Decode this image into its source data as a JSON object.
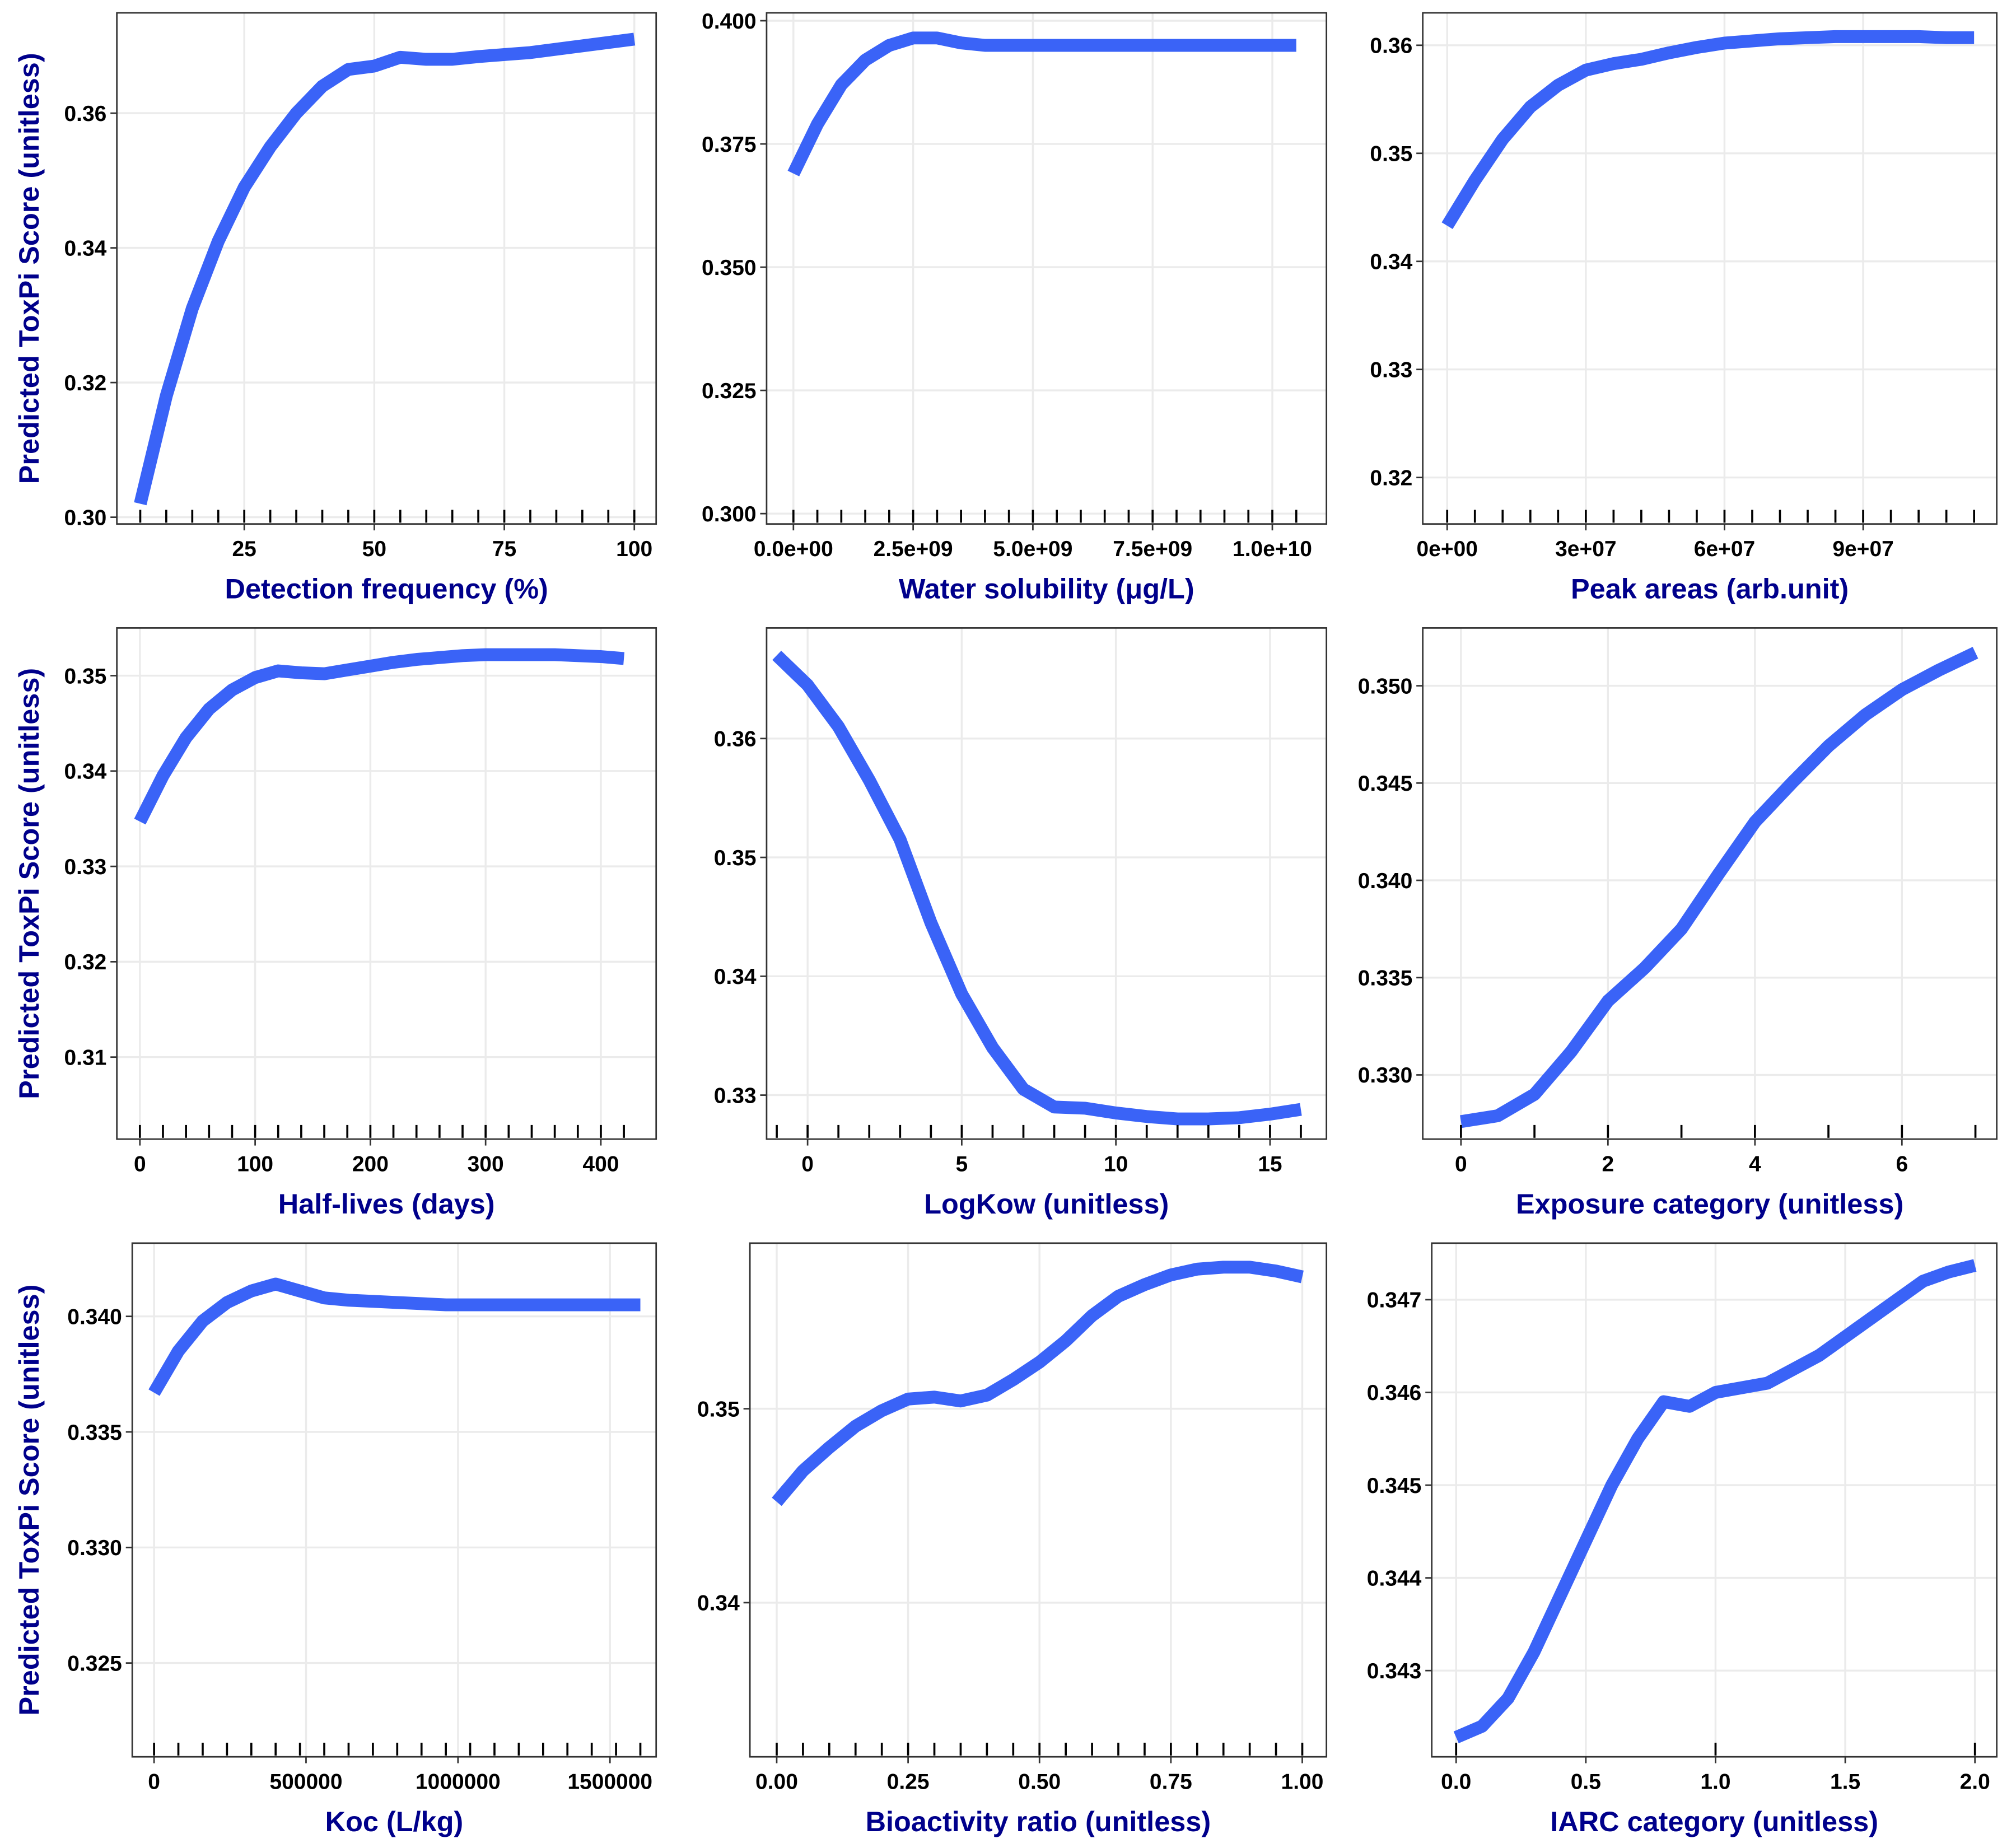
{
  "chart_data": [
    {
      "type": "line",
      "x_label": "Detection frequency (%)",
      "y_label": "Predicted ToxPi Score (unitless)",
      "color": "#3a63f7",
      "grid": true,
      "x": [
        5,
        10,
        15,
        20,
        25,
        30,
        35,
        40,
        45,
        50,
        55,
        60,
        65,
        70,
        75,
        80,
        85,
        90,
        95,
        100
      ],
      "values": [
        0.302,
        0.318,
        0.331,
        0.341,
        0.349,
        0.355,
        0.36,
        0.364,
        0.3665,
        0.367,
        0.3683,
        0.368,
        0.368,
        0.3684,
        0.3687,
        0.369,
        0.3695,
        0.37,
        0.3705,
        0.371
      ],
      "xlim": [
        0.5,
        104.2
      ],
      "ylim": [
        0.299,
        0.3749
      ],
      "xticks": [
        25,
        50,
        75,
        100
      ],
      "yticks": [
        {
          "value": 0.3,
          "label": "0.30"
        },
        0.32,
        0.34,
        0.36
      ]
    },
    {
      "type": "line",
      "x_label": "Water solubility (μg/L)",
      "color": "#3a63f7",
      "grid": true,
      "x": [
        0,
        500000000,
        1000000000,
        1500000000,
        2000000000,
        2500000000,
        3000000000,
        3500000000,
        4000000000,
        4500000000,
        5000000000,
        5500000000,
        6000000000,
        6500000000,
        7000000000,
        7500000000,
        8000000000,
        8500000000,
        9000000000,
        9500000000,
        10000000000,
        10500000000
      ],
      "values": [
        0.369,
        0.379,
        0.387,
        0.392,
        0.395,
        0.3965,
        0.3965,
        0.3955,
        0.395,
        0.395,
        0.395,
        0.395,
        0.395,
        0.395,
        0.395,
        0.395,
        0.395,
        0.395,
        0.395,
        0.395,
        0.395,
        0.395
      ],
      "xlim": [
        -560000000,
        11130000000
      ],
      "ylim": [
        0.2979,
        0.4016
      ],
      "xticks": [
        {
          "value": 0,
          "label": "0.0e+00"
        },
        {
          "value": 2500000000,
          "label": "2.5e+09"
        },
        {
          "value": 5000000000,
          "label": "5.0e+09"
        },
        {
          "value": 7500000000,
          "label": "7.5e+09"
        },
        {
          "value": 10000000000,
          "label": "1.0e+10"
        }
      ],
      "yticks": [
        {
          "value": 0.3,
          "label": "0.300"
        },
        0.325,
        {
          "value": 0.35,
          "label": "0.350"
        },
        0.375,
        {
          "value": 0.4,
          "label": "0.400"
        }
      ]
    },
    {
      "type": "line",
      "x_label": "Peak areas (arb.unit)",
      "color": "#3a63f7",
      "grid": true,
      "x": [
        0,
        6000000,
        12000000,
        18000000,
        24000000,
        30000000,
        36000000,
        42000000,
        48000000,
        54000000,
        60000000,
        66000000,
        72000000,
        78000000,
        84000000,
        90000000,
        96000000,
        102000000,
        108000000,
        114000000
      ],
      "values": [
        0.3433,
        0.3475,
        0.3513,
        0.3543,
        0.3563,
        0.3577,
        0.3583,
        0.3587,
        0.3593,
        0.3598,
        0.3602,
        0.3604,
        0.3606,
        0.3607,
        0.3608,
        0.3608,
        0.3608,
        0.3608,
        0.3607,
        0.3607
      ],
      "xlim": [
        -5280000,
        118900000
      ],
      "ylim": [
        0.3157,
        0.363
      ],
      "xticks": [
        {
          "value": 0,
          "label": "0e+00"
        },
        {
          "value": 30000000,
          "label": "3e+07"
        },
        {
          "value": 60000000,
          "label": "6e+07"
        },
        {
          "value": 90000000,
          "label": "9e+07"
        }
      ],
      "yticks": [
        0.32,
        0.33,
        0.34,
        0.35,
        0.36
      ]
    },
    {
      "type": "line",
      "x_label": "Half-lives (days)",
      "y_label": "Predicted ToxPi Score (unitless)",
      "color": "#3a63f7",
      "grid": true,
      "x": [
        0,
        20,
        40,
        60,
        80,
        100,
        120,
        140,
        160,
        180,
        200,
        220,
        240,
        260,
        280,
        300,
        320,
        340,
        360,
        380,
        400,
        420
      ],
      "values": [
        0.3347,
        0.3395,
        0.3435,
        0.3465,
        0.3485,
        0.3498,
        0.3505,
        0.3503,
        0.3502,
        0.3506,
        0.351,
        0.3514,
        0.3517,
        0.3519,
        0.3521,
        0.3522,
        0.3522,
        0.3522,
        0.3522,
        0.3521,
        0.352,
        0.3518
      ],
      "xlim": [
        -20,
        448
      ],
      "ylim": [
        0.3014,
        0.355
      ],
      "xticks": [
        0,
        100,
        200,
        300,
        400
      ],
      "yticks": [
        0.31,
        0.32,
        0.33,
        0.34,
        0.35
      ]
    },
    {
      "type": "line",
      "x_label": "LogKow (unitless)",
      "color": "#3a63f7",
      "grid": true,
      "x": [
        -1,
        0,
        1,
        2,
        3,
        4,
        5,
        6,
        7,
        8,
        9,
        10,
        11,
        12,
        13,
        14,
        15,
        16
      ],
      "values": [
        0.367,
        0.3645,
        0.361,
        0.3565,
        0.3515,
        0.3445,
        0.3385,
        0.334,
        0.3305,
        0.329,
        0.3289,
        0.3285,
        0.3282,
        0.328,
        0.328,
        0.3281,
        0.3284,
        0.3288
      ],
      "xlim": [
        -1.33,
        16.83
      ],
      "ylim": [
        0.3263,
        0.3693
      ],
      "xticks": [
        0,
        5,
        10,
        15
      ],
      "yticks": [
        0.33,
        0.34,
        0.35,
        0.36
      ]
    },
    {
      "type": "line",
      "x_label": "Exposure category (unitless)",
      "color": "#3a63f7",
      "grid": true,
      "x": [
        0,
        0.5,
        1,
        1.5,
        2,
        2.5,
        3,
        3.5,
        4,
        4.5,
        5,
        5.5,
        6,
        6.5,
        7
      ],
      "values": [
        0.3276,
        0.3279,
        0.329,
        0.3312,
        0.3338,
        0.3355,
        0.3375,
        0.3403,
        0.343,
        0.345,
        0.3469,
        0.3485,
        0.3498,
        0.3508,
        0.3517
      ],
      "rug": [
        0,
        1,
        2,
        3,
        4,
        5,
        6,
        7
      ],
      "xlim": [
        -0.52,
        7.29
      ],
      "ylim": [
        0.3267,
        0.35297
      ],
      "xticks": [
        0,
        2,
        4,
        6
      ],
      "yticks": [
        {
          "value": 0.33,
          "label": "0.330"
        },
        0.335,
        {
          "value": 0.34,
          "label": "0.340"
        },
        0.345,
        {
          "value": 0.35,
          "label": "0.350"
        }
      ]
    },
    {
      "type": "line",
      "x_label": "Koc (L/kg)",
      "y_label": "Predicted ToxPi Score (unitless)",
      "color": "#3a63f7",
      "grid": true,
      "x": [
        0,
        80000,
        160000,
        240000,
        320000,
        400000,
        480000,
        560000,
        640000,
        720000,
        800000,
        880000,
        960000,
        1040000,
        1120000,
        1200000,
        1280000,
        1360000,
        1440000,
        1520000,
        1600000
      ],
      "values": [
        0.3367,
        0.3385,
        0.3398,
        0.3406,
        0.3411,
        0.3414,
        0.3411,
        0.3408,
        0.3407,
        0.34065,
        0.3406,
        0.34055,
        0.3405,
        0.3405,
        0.3405,
        0.3405,
        0.3405,
        0.3405,
        0.3405,
        0.3405,
        0.3405
      ],
      "xlim": [
        -71730,
        1652000
      ],
      "ylim": [
        0.32094,
        0.34317
      ],
      "xticks": [
        0,
        500000,
        1000000,
        1500000
      ],
      "yticks": [
        0.325,
        {
          "value": 0.33,
          "label": "0.330"
        },
        0.335,
        {
          "value": 0.34,
          "label": "0.340"
        }
      ]
    },
    {
      "type": "line",
      "x_label": "Bioactivity ratio (unitless)",
      "color": "#3a63f7",
      "grid": true,
      "x": [
        0,
        0.05,
        0.1,
        0.15,
        0.2,
        0.25,
        0.3,
        0.35,
        0.4,
        0.45,
        0.5,
        0.55,
        0.6,
        0.65,
        0.7,
        0.75,
        0.8,
        0.85,
        0.9,
        0.95,
        1
      ],
      "values": [
        0.3452,
        0.3468,
        0.348,
        0.3491,
        0.3499,
        0.3505,
        0.3506,
        0.3504,
        0.3507,
        0.3515,
        0.3524,
        0.3535,
        0.3548,
        0.3558,
        0.3564,
        0.3569,
        0.3572,
        0.3573,
        0.3573,
        0.3571,
        0.3568
      ],
      "xlim": [
        -0.051,
        1.046
      ],
      "ylim": [
        0.33205,
        0.35854
      ],
      "xticks": [
        {
          "value": 0,
          "label": "0.00"
        },
        0.25,
        {
          "value": 0.5,
          "label": "0.50"
        },
        0.75,
        {
          "value": 1,
          "label": "1.00"
        }
      ],
      "yticks": [
        0.34,
        0.35
      ]
    },
    {
      "type": "line",
      "x_label": "IARC category (unitless)",
      "color": "#3a63f7",
      "grid": true,
      "x": [
        0,
        0.1,
        0.2,
        0.3,
        0.4,
        0.5,
        0.6,
        0.7,
        0.8,
        0.9,
        1,
        1.1,
        1.2,
        1.3,
        1.4,
        1.5,
        1.6,
        1.7,
        1.8,
        1.9,
        2
      ],
      "values": [
        0.34228,
        0.3424,
        0.3427,
        0.3432,
        0.3438,
        0.3444,
        0.345,
        0.3455,
        0.3459,
        0.34585,
        0.346,
        0.34605,
        0.3461,
        0.34625,
        0.3464,
        0.3466,
        0.3468,
        0.347,
        0.3472,
        0.3473,
        0.34737
      ],
      "rug": [
        0,
        1,
        2
      ],
      "xlim": [
        -0.094,
        2.084
      ],
      "ylim": [
        0.34207,
        0.34761
      ],
      "xticks": [
        {
          "value": 0,
          "label": "0.0"
        },
        0.5,
        {
          "value": 1,
          "label": "1.0"
        },
        1.5,
        {
          "value": 2,
          "label": "2.0"
        }
      ],
      "yticks": [
        0.343,
        0.344,
        0.345,
        0.346,
        0.347
      ]
    }
  ]
}
